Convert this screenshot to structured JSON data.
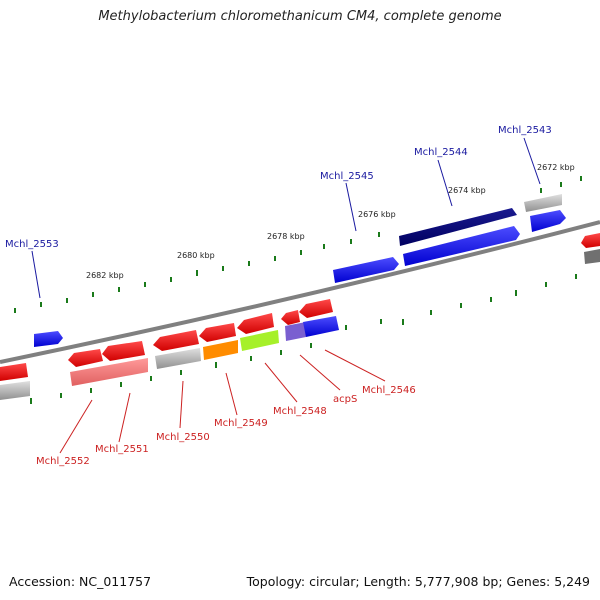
{
  "title": "Methylobacterium chloromethanicum CM4, complete genome",
  "footer": {
    "accession": "Accession: NC_011757",
    "topology": "Topology: circular; Length: 5,777,908 bp; Genes: 5,249"
  },
  "scale_ticks": [
    "2672 kbp",
    "2674 kbp",
    "2676 kbp",
    "2678 kbp",
    "2680 kbp",
    "2682 kbp"
  ],
  "gene_labels": {
    "forward": [
      "Mchl_2543",
      "Mchl_2544",
      "Mchl_2545",
      "Mchl_2553"
    ],
    "reverse": [
      "Mchl_2546",
      "acpS",
      "Mchl_2548",
      "Mchl_2549",
      "Mchl_2550",
      "Mchl_2551",
      "Mchl_2552"
    ]
  },
  "colors": {
    "forward_gene": "#1a1aff",
    "forward_gene_dark": "#0a0a80",
    "reverse_gene": "#ff1a1a",
    "label_forward": "#1a1aa0",
    "label_reverse": "#cc2222",
    "tick_major": "#1a7a1a",
    "backbone": "#808080"
  }
}
